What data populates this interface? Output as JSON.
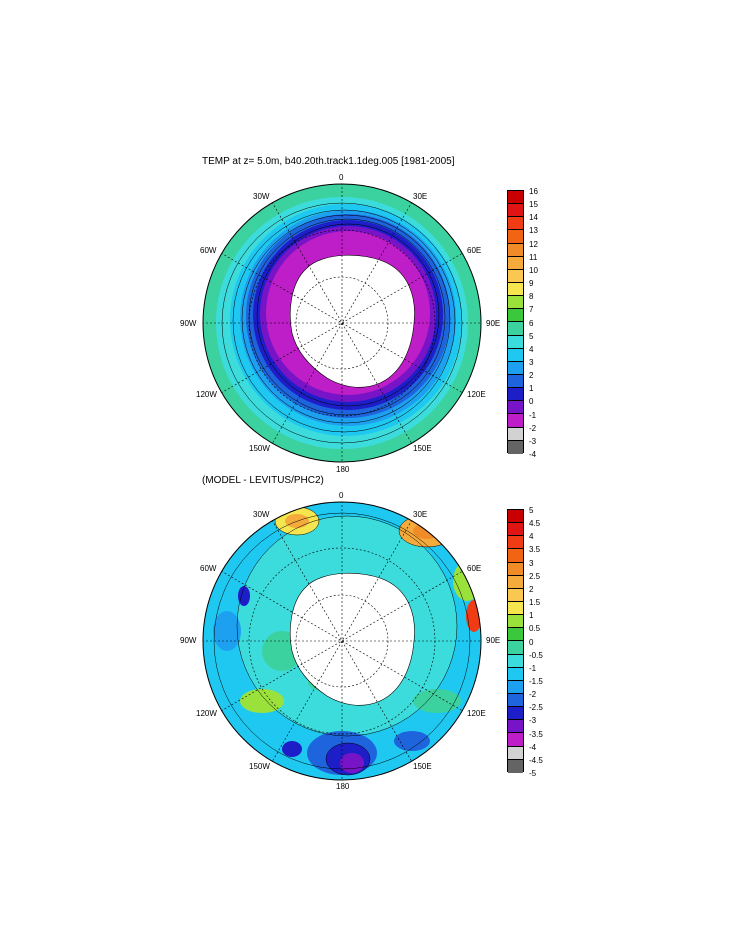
{
  "panel1": {
    "title": "TEMP at z=   5.0m, b40.20th.track1.1deg.005 [1981-2005]",
    "labels": {
      "n0": "0",
      "e30": "30E",
      "e60": "60E",
      "e90": "90E",
      "e120": "120E",
      "e150": "150E",
      "s180": "180",
      "w150": "150W",
      "w120": "120W",
      "w90": "90W",
      "w60": "60W",
      "w30": "30W"
    },
    "colorbar": {
      "labels": [
        "16",
        "15",
        "14",
        "13",
        "12",
        "11",
        "10",
        "9",
        "8",
        "7",
        "6",
        "5",
        "4",
        "3",
        "2",
        "1",
        "0",
        "-1",
        "-2",
        "-3",
        "-4"
      ],
      "colors": [
        "#c80000",
        "#e01414",
        "#f03c14",
        "#f06414",
        "#f08c28",
        "#f5aa3c",
        "#fac850",
        "#f5e650",
        "#9be13c",
        "#3cc83c",
        "#3cd2a0",
        "#3cdcdc",
        "#1ec8f0",
        "#1ea0f0",
        "#1e64dc",
        "#1e1ec8",
        "#7814c8",
        "#be1ec8",
        "#d2d2d2",
        "#646464"
      ]
    }
  },
  "panel2": {
    "title": "(MODEL - LEVITUS/PHC2)",
    "labels": {
      "n0": "0",
      "e30": "30E",
      "e60": "60E",
      "e90": "90E",
      "e120": "120E",
      "e150": "150E",
      "s180": "180",
      "w150": "150W",
      "w120": "120W",
      "w90": "90W",
      "w60": "60W",
      "w30": "30W"
    },
    "colorbar": {
      "labels": [
        "5",
        "4.5",
        "4",
        "3.5",
        "3",
        "2.5",
        "2",
        "1.5",
        "1",
        "0.5",
        "0",
        "-0.5",
        "-1",
        "-1.5",
        "-2",
        "-2.5",
        "-3",
        "-3.5",
        "-4",
        "-4.5",
        "-5"
      ],
      "colors": [
        "#c80000",
        "#e01414",
        "#f03c14",
        "#f06414",
        "#f08c28",
        "#f5aa3c",
        "#fac850",
        "#f5e650",
        "#9be13c",
        "#3cc83c",
        "#3cd2a0",
        "#3cdcdc",
        "#1ec8f0",
        "#1ea0f0",
        "#1e64dc",
        "#1e1ec8",
        "#7814c8",
        "#be1ec8",
        "#d2d2d2",
        "#646464"
      ]
    }
  }
}
